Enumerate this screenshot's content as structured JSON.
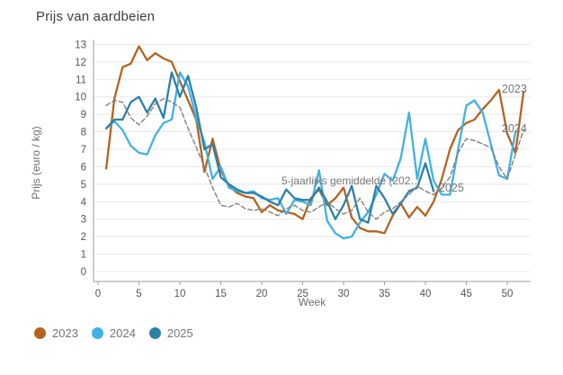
{
  "title": "Prijs van aardbeien",
  "legend": {
    "items": [
      {
        "label": "2023",
        "color": "#b5621f"
      },
      {
        "label": "2024",
        "color": "#41b1e6"
      },
      {
        "label": "2025",
        "color": "#2d80a8"
      }
    ]
  },
  "annotations": {
    "avg_line_label": "5-jaarlijks gemiddelde (202…",
    "series_end_labels": [
      "2023",
      "2024",
      "2025"
    ],
    "label_color": "#757575"
  },
  "chart_data": {
    "type": "line",
    "title": "Prijs van aardbeien",
    "xlabel": "Week",
    "ylabel": "Prijs (euro / kg)",
    "xlim": [
      0,
      53
    ],
    "ylim": [
      0,
      13
    ],
    "x_ticks": [
      0,
      5,
      10,
      15,
      20,
      25,
      30,
      35,
      40,
      45,
      50
    ],
    "y_ticks": [
      0,
      1,
      2,
      3,
      4,
      5,
      6,
      7,
      8,
      9,
      10,
      11,
      12,
      13
    ],
    "grid": true,
    "legend_position": "bottom-left",
    "x_unit": "week number, series start at week 1",
    "series": [
      {
        "name": "2023",
        "color": "#b5621f",
        "style": "solid",
        "start_week": 1,
        "values": [
          5.9,
          9.9,
          11.7,
          11.9,
          12.9,
          12.1,
          12.5,
          12.2,
          12.0,
          10.9,
          9.8,
          8.7,
          5.7,
          7.6,
          5.8,
          4.9,
          4.5,
          4.3,
          4.2,
          3.4,
          3.8,
          3.5,
          3.4,
          3.3,
          3.0,
          4.2,
          4.7,
          3.8,
          4.2,
          4.8,
          3.1,
          2.5,
          2.3,
          2.3,
          2.2,
          3.2,
          3.9,
          3.1,
          3.7,
          3.2,
          4.0,
          5.3,
          7.0,
          8.1,
          8.5,
          8.7,
          9.3,
          9.8,
          10.4,
          7.9,
          6.8,
          10.3
        ]
      },
      {
        "name": "2024",
        "color": "#41b1e6",
        "style": "solid",
        "start_week": 1,
        "values": [
          8.2,
          8.6,
          8.1,
          7.2,
          6.8,
          6.7,
          7.8,
          8.5,
          8.7,
          11.4,
          10.6,
          8.8,
          7.4,
          5.3,
          6.0,
          4.8,
          4.6,
          4.5,
          4.6,
          4.2,
          4.1,
          4.2,
          3.3,
          4.1,
          4.0,
          3.8,
          5.8,
          2.9,
          2.2,
          1.9,
          2.0,
          2.8,
          3.4,
          4.4,
          5.6,
          5.2,
          6.5,
          9.1,
          5.3,
          7.6,
          5.2,
          4.4,
          4.4,
          7.0,
          9.5,
          9.8,
          9.1,
          7.3,
          5.5,
          5.3,
          8.0
        ]
      },
      {
        "name": "2025",
        "color": "#2d80a8",
        "style": "solid",
        "start_week": 1,
        "values": [
          8.2,
          8.7,
          8.7,
          9.7,
          10.0,
          9.1,
          9.9,
          8.8,
          11.4,
          10.0,
          11.2,
          9.4,
          7.0,
          7.3,
          5.4,
          5.0,
          4.7,
          4.5,
          4.5,
          4.3,
          4.0,
          3.8,
          4.7,
          4.2,
          4.1,
          4.1,
          4.8,
          4.0,
          3.0,
          3.8,
          4.9,
          3.0,
          2.8,
          4.9,
          4.2,
          3.3,
          3.9,
          4.6,
          4.8,
          6.2,
          4.6
        ]
      },
      {
        "name": "5-jaarlijks gemiddelde (202…",
        "color": "#808080",
        "style": "dashed",
        "start_week": 1,
        "values": [
          9.5,
          9.8,
          9.7,
          8.8,
          8.4,
          8.9,
          9.6,
          9.9,
          9.7,
          9.4,
          8.2,
          7.1,
          6.0,
          4.8,
          3.8,
          3.7,
          3.9,
          3.6,
          3.5,
          3.6,
          3.4,
          3.2,
          3.6,
          3.8,
          3.5,
          3.4,
          3.7,
          4.0,
          3.6,
          3.3,
          3.5,
          4.2,
          3.4,
          3.0,
          3.4,
          3.6,
          4.0,
          4.4,
          4.9,
          4.6,
          4.4,
          4.8,
          5.4,
          6.8,
          7.6,
          7.5,
          7.3,
          7.1,
          6.0,
          5.3,
          6.7,
          8.1
        ]
      }
    ]
  }
}
